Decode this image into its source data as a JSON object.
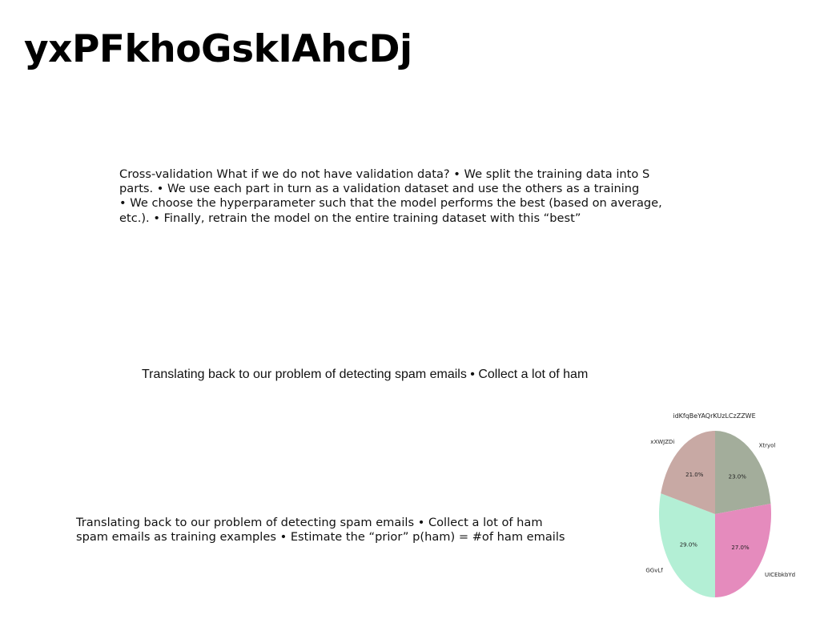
{
  "title": "yxPFkhoGskIAhcDj",
  "paragraphs": {
    "cross_validation": [
      "Cross-validation What if we do not have validation data? • We split the training data into S",
      "parts. • We use each part in turn as a validation dataset and use the others as a training",
      "• We choose the hyperparameter such that the model performs the best (based on average,",
      "etc.). • Finally, retrain the model on the entire training dataset with this “best”"
    ],
    "spam_short": "Translating back to our problem of detecting spam emails • Collect a lot of ham",
    "spam_long": [
      "Translating back to our problem of detecting spam emails • Collect a lot of ham",
      "spam emails as training examples • Estimate the “prior” p(ham) = #of ham emails"
    ]
  },
  "chart_data": {
    "type": "pie",
    "title": "idKfqBeYAQrKUzLCzZZWE",
    "start_angle_deg": 90,
    "direction": "clockwise",
    "slices": [
      {
        "label": "Xtryol",
        "value": 23.0,
        "pct_label": "23.0%",
        "color": "#a3ad9b"
      },
      {
        "label": "UICEbkbYd",
        "value": 27.0,
        "pct_label": "27.0%",
        "color": "#e58bbd"
      },
      {
        "label": "GGvLf",
        "value": 29.0,
        "pct_label": "29.0%",
        "color": "#b3efd5"
      },
      {
        "label": "xXWJZDi",
        "value": 21.0,
        "pct_label": "21.0%",
        "color": "#c8a9a4"
      }
    ]
  }
}
